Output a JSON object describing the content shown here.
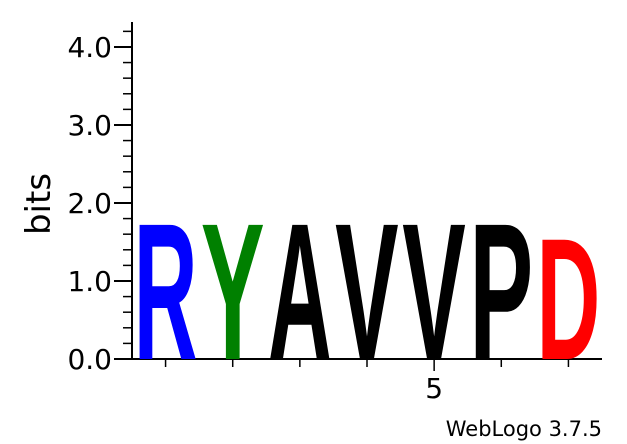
{
  "chart_data": {
    "type": "sequence_logo",
    "ylabel": "bits",
    "ylim": [
      0,
      4.32
    ],
    "yticks": [
      {
        "value": 0,
        "label": "0.0"
      },
      {
        "value": 1,
        "label": "1.0"
      },
      {
        "value": 2,
        "label": "2.0"
      },
      {
        "value": 3,
        "label": "3.0"
      },
      {
        "value": 4,
        "label": "4.0"
      }
    ],
    "y_minor_step": 0.2,
    "positions": [
      1,
      2,
      3,
      4,
      5,
      6,
      7
    ],
    "x_labeled_ticks": [
      {
        "value": 5,
        "label": "5"
      }
    ],
    "letters": [
      {
        "position": 1,
        "letter": "R",
        "bits": 1.8,
        "color": "#0000ff"
      },
      {
        "position": 2,
        "letter": "Y",
        "bits": 1.8,
        "color": "#008000"
      },
      {
        "position": 3,
        "letter": "A",
        "bits": 1.8,
        "color": "#000000"
      },
      {
        "position": 4,
        "letter": "V",
        "bits": 1.8,
        "color": "#000000"
      },
      {
        "position": 5,
        "letter": "V",
        "bits": 1.8,
        "color": "#000000"
      },
      {
        "position": 6,
        "letter": "P",
        "bits": 1.8,
        "color": "#000000"
      },
      {
        "position": 7,
        "letter": "D",
        "bits": 1.6,
        "color": "#ff0000"
      }
    ],
    "credit": "WebLogo 3.7.5"
  }
}
